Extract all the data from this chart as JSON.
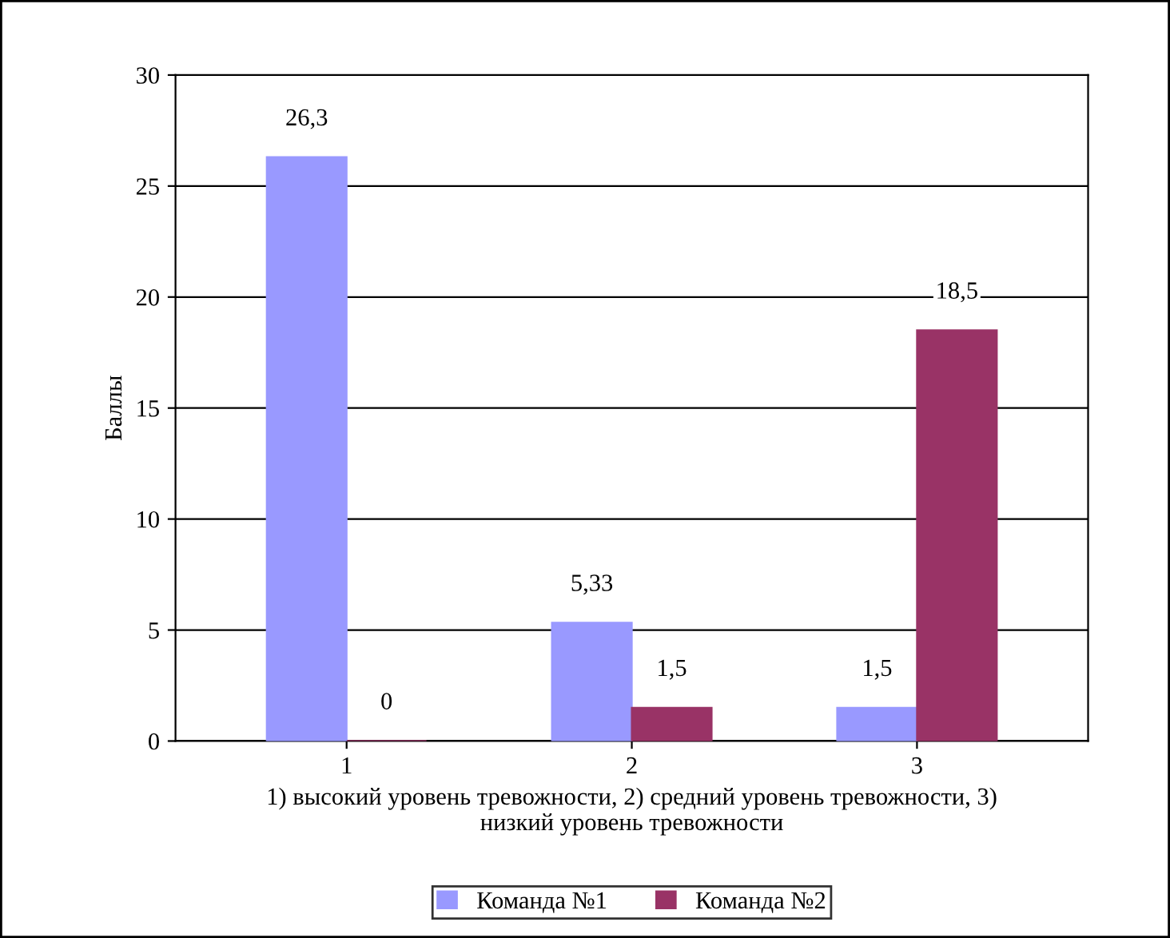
{
  "chart_data": {
    "type": "bar",
    "ylabel": "Баллы",
    "xlabel": "1) высокий уровень тревожности, 2) средний уровень тревожности, 3)\nнизкий уровень тревожности",
    "categories": [
      "1",
      "2",
      "3"
    ],
    "series": [
      {
        "name": "Команда №1",
        "color": "#9999ff",
        "values": [
          26.3,
          5.33,
          1.5
        ],
        "value_labels": [
          "26,3",
          "5,33",
          "1,5"
        ]
      },
      {
        "name": "Команда №2",
        "color": "#993366",
        "values": [
          0,
          1.5,
          18.5
        ],
        "value_labels": [
          "0",
          "1,5",
          "18,5"
        ]
      }
    ],
    "ylim": [
      0,
      30
    ],
    "yticks": [
      0,
      5,
      10,
      15,
      20,
      25,
      30
    ],
    "grid": "y",
    "legend": "bottom"
  }
}
